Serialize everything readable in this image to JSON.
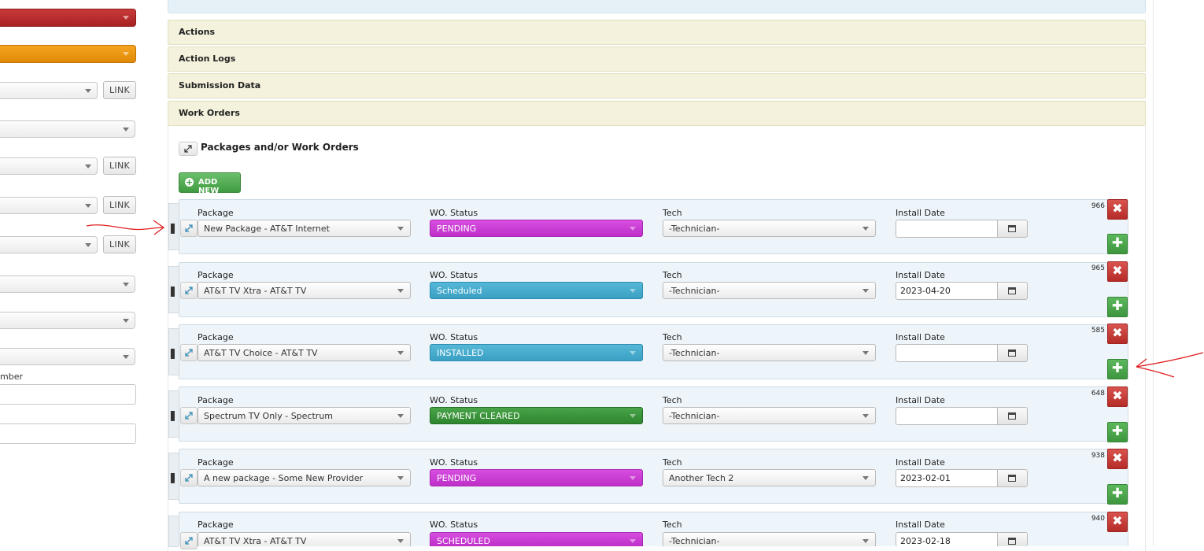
{
  "left_panel": {
    "link_label": "LINK",
    "partial_label": "mber"
  },
  "accordion": {
    "actions": "Actions",
    "action_logs": "Action Logs",
    "submission_data": "Submission Data",
    "work_orders": "Work Orders"
  },
  "work_orders": {
    "heading": "Packages and/or Work Orders",
    "add_new_label": "ADD NEW",
    "field_labels": {
      "package": "Package",
      "status": "WO. Status",
      "tech": "Tech",
      "install_date": "Install Date"
    },
    "rows": [
      {
        "id": "966",
        "package": "New Package - AT&T Internet",
        "status": "PENDING",
        "status_color": "#c93bd2",
        "tech": "-Technician-",
        "install_date": ""
      },
      {
        "id": "965",
        "package": "AT&T TV Xtra - AT&T TV",
        "status": "Scheduled",
        "status_color": "#45a9cb",
        "tech": "-Technician-",
        "install_date": "2023-04-20"
      },
      {
        "id": "585",
        "package": "AT&T TV Choice - AT&T TV",
        "status": "INSTALLED",
        "status_color": "#45a9cb",
        "tech": "-Technician-",
        "install_date": ""
      },
      {
        "id": "648",
        "package": "Spectrum TV Only - Spectrum",
        "status": "PAYMENT CLEARED",
        "status_color": "#389438",
        "tech": "-Technician-",
        "install_date": ""
      },
      {
        "id": "938",
        "package": "A new package - Some New Provider",
        "status": "PENDING",
        "status_color": "#c93bd2",
        "tech": "Another Tech 2",
        "install_date": "2023-02-01"
      },
      {
        "id": "940",
        "package": "AT&T TV Xtra - AT&T TV",
        "status": "SCHEDULED",
        "status_color": "#c93bd2",
        "tech": "-Technician-",
        "install_date": "2023-02-18"
      }
    ]
  },
  "colors": {
    "annotation_red": "#e02020",
    "accordion_bg": "#f4f2dc",
    "row_bg": "#eef5fa"
  }
}
